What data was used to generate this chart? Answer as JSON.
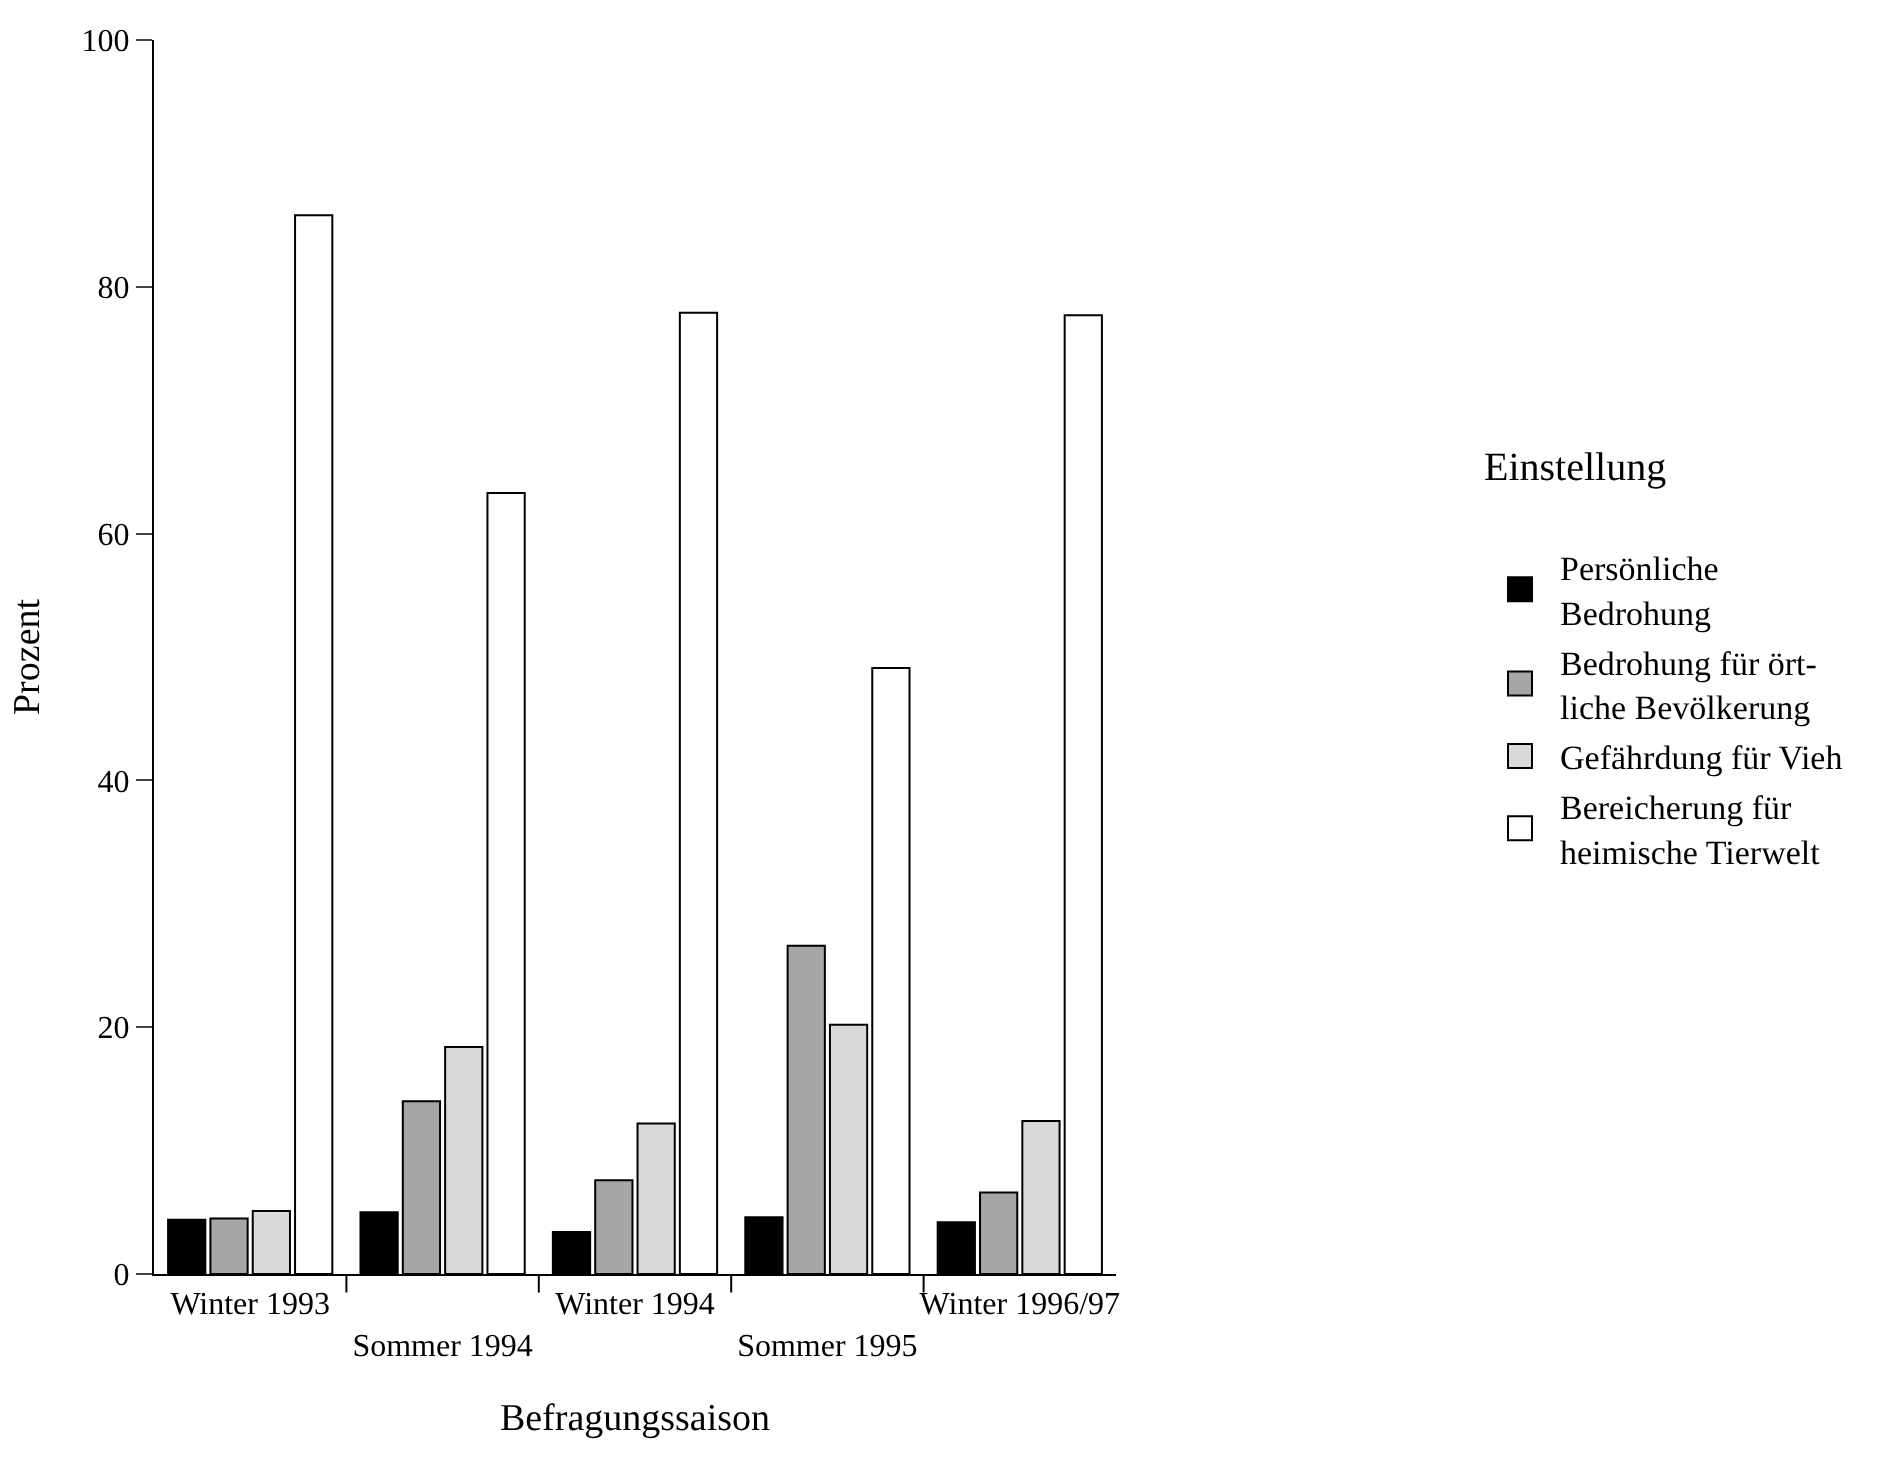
{
  "chart_data": {
    "type": "bar",
    "xlabel": "Befragungssaison",
    "ylabel": "Prozent",
    "legend_title": "Einstellung",
    "legend": "right",
    "categories": [
      "Winter 1993",
      "Sommer 1994",
      "Winter 1994",
      "Sommer 1995",
      "Winter 1996/97"
    ],
    "ylim": [
      0,
      100
    ],
    "yticks": [
      0,
      20,
      40,
      60,
      80,
      100
    ],
    "series": [
      {
        "name": "Persönliche\nBedrohung",
        "color": "#000000",
        "values": [
          4.4,
          5.0,
          3.4,
          4.6,
          4.2
        ]
      },
      {
        "name": "Bedrohung für ört-\nliche Bevölkerung",
        "color": "#a6a6a6",
        "values": [
          4.5,
          14.0,
          7.6,
          26.6,
          6.6
        ]
      },
      {
        "name": "Gefährdung für Vieh",
        "color": "#d9d9d9",
        "values": [
          5.1,
          18.4,
          12.2,
          20.2,
          12.4
        ]
      },
      {
        "name": "Bereicherung für\nheimische Tierwelt",
        "color": "#ffffff",
        "values": [
          85.8,
          63.3,
          77.9,
          49.1,
          77.7
        ]
      }
    ]
  }
}
